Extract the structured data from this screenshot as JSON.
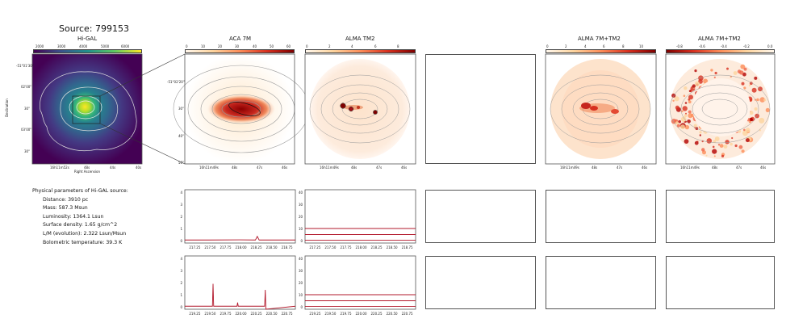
{
  "source_title": "Source: 799153",
  "panels": {
    "higal": {
      "title": "Hi-GAL",
      "cbar_ticks": [
        "2000",
        "3000",
        "4000",
        "5000",
        "6000"
      ],
      "y_ticks": [
        "-51°01'30\"",
        "02'00\"",
        "30\"",
        "03'00\"",
        "30\""
      ],
      "x_ticks": [
        "16h11m52s",
        "48s",
        "44s",
        "40s"
      ],
      "xlabel": "Right Ascension",
      "ylabel": "Declination"
    },
    "aca": {
      "title": "ACA 7M",
      "cbar_ticks": [
        "0",
        "10",
        "20",
        "30",
        "40",
        "50",
        "60"
      ],
      "y_ticks": [
        "-51°02'20\"",
        "30\"",
        "40\"",
        "50\""
      ],
      "x_ticks": [
        "16h11m49s",
        "48s",
        "47s",
        "46s"
      ]
    },
    "tm2": {
      "title": "ALMA TM2",
      "cbar_ticks": [
        "0",
        "2",
        "4",
        "6",
        "8"
      ],
      "x_ticks": [
        "16h11m49s",
        "48s",
        "47s",
        "46s"
      ]
    },
    "combo": {
      "title": "ALMA 7M+TM2",
      "cbar_ticks": [
        "0",
        "2",
        "4",
        "6",
        "8",
        "10"
      ],
      "x_ticks": [
        "16h11m49s",
        "48s",
        "47s",
        "46s"
      ]
    },
    "diff": {
      "title": "ALMA 7M+TM2",
      "cbar_ticks": [
        "-0.8",
        "-0.6",
        "-0.4",
        "-0.2",
        "0.0"
      ],
      "x_ticks": [
        "16h11m49s",
        "48s",
        "47s",
        "46s"
      ]
    }
  },
  "physical": {
    "header": "Physical parameters of Hi-GAL source:",
    "lines": [
      "Distance: 3910 pc",
      "Mass: 587.3 Msun",
      "Luminosity: 1364.1 Lsun",
      "Surface density: 1.65 g/cm^2",
      "L/M (evolution): 2.322 Lsun/Msun",
      "Bolometric temperature: 39.3 K"
    ]
  },
  "spectra": {
    "row1_x_ticks": [
      "217.25",
      "217.50",
      "217.75",
      "218.00",
      "218.25",
      "218.50",
      "218.75"
    ],
    "row2_x_ticks": [
      "219.25",
      "219.50",
      "219.75",
      "220.00",
      "220.25",
      "220.50",
      "220.75"
    ],
    "aca_y_ticks": [
      "0",
      "1",
      "2",
      "3",
      "4"
    ],
    "tm2_y_ticks": [
      "0",
      "10",
      "20",
      "30",
      "40"
    ]
  },
  "colors": {
    "heat": "#b2182b",
    "viridis_bright": "#fde725",
    "contour": "#9a9a9a"
  },
  "chart_data": [
    {
      "type": "line",
      "panel": "ACA 7M row1 spectrum",
      "xlim": [
        217.1,
        218.9
      ],
      "ylim": [
        0,
        4
      ],
      "series": [
        {
          "x": [
            217.1,
            217.5,
            218.0,
            218.25,
            218.28,
            218.31,
            218.5,
            218.9
          ],
          "values": [
            0.05,
            0.05,
            0.06,
            0.05,
            0.35,
            0.05,
            0.05,
            0.05
          ]
        }
      ]
    },
    {
      "type": "line",
      "panel": "ALMA TM2 row1 spectra",
      "xlim": [
        217.1,
        218.9
      ],
      "ylim": [
        0,
        40
      ],
      "series": [
        {
          "x": [
            217.1,
            218.9
          ],
          "values": [
            0.3,
            0.3
          ]
        },
        {
          "x": [
            217.1,
            218.9
          ],
          "values": [
            5,
            5
          ]
        },
        {
          "x": [
            217.1,
            218.9
          ],
          "values": [
            10,
            10
          ]
        }
      ]
    },
    {
      "type": "line",
      "panel": "ACA 7M row2 spectrum",
      "xlim": [
        219.1,
        220.9
      ],
      "ylim": [
        0,
        4
      ],
      "series": [
        {
          "x": [
            219.1,
            219.55,
            219.56,
            219.57,
            219.95,
            219.96,
            219.97,
            220.4,
            220.41,
            220.42,
            220.9
          ],
          "values": [
            0.05,
            0.05,
            1.9,
            0.05,
            0.05,
            0.35,
            0.05,
            0.05,
            1.4,
            -0.2,
            0.05
          ]
        }
      ]
    },
    {
      "type": "line",
      "panel": "ALMA TM2 row2 spectra",
      "xlim": [
        219.1,
        220.9
      ],
      "ylim": [
        0,
        40
      ],
      "series": [
        {
          "x": [
            219.1,
            220.9
          ],
          "values": [
            0.3,
            0.3
          ]
        },
        {
          "x": [
            219.1,
            220.9
          ],
          "values": [
            5,
            5
          ]
        },
        {
          "x": [
            219.1,
            220.9
          ],
          "values": [
            10,
            10
          ]
        }
      ]
    }
  ]
}
